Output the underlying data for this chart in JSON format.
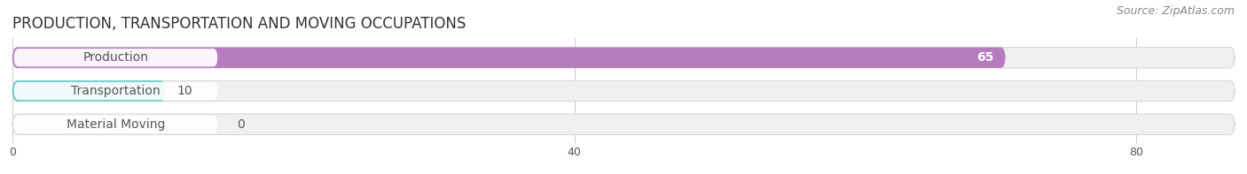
{
  "title": "PRODUCTION, TRANSPORTATION AND MOVING OCCUPATIONS",
  "source": "Source: ZipAtlas.com",
  "categories": [
    "Production",
    "Transportation",
    "Material Moving"
  ],
  "values": [
    65,
    10,
    0
  ],
  "bar_colors": [
    "#b57cbe",
    "#5ec8c8",
    "#a8a8d8"
  ],
  "label_bg_color": "#ffffff",
  "row_bg_color": "#f0f0f0",
  "xlim": [
    0,
    87
  ],
  "xticks": [
    0,
    40,
    80
  ],
  "title_fontsize": 12,
  "source_fontsize": 9,
  "label_fontsize": 10,
  "value_fontsize": 10,
  "figsize": [
    14.06,
    1.97
  ],
  "dpi": 100
}
